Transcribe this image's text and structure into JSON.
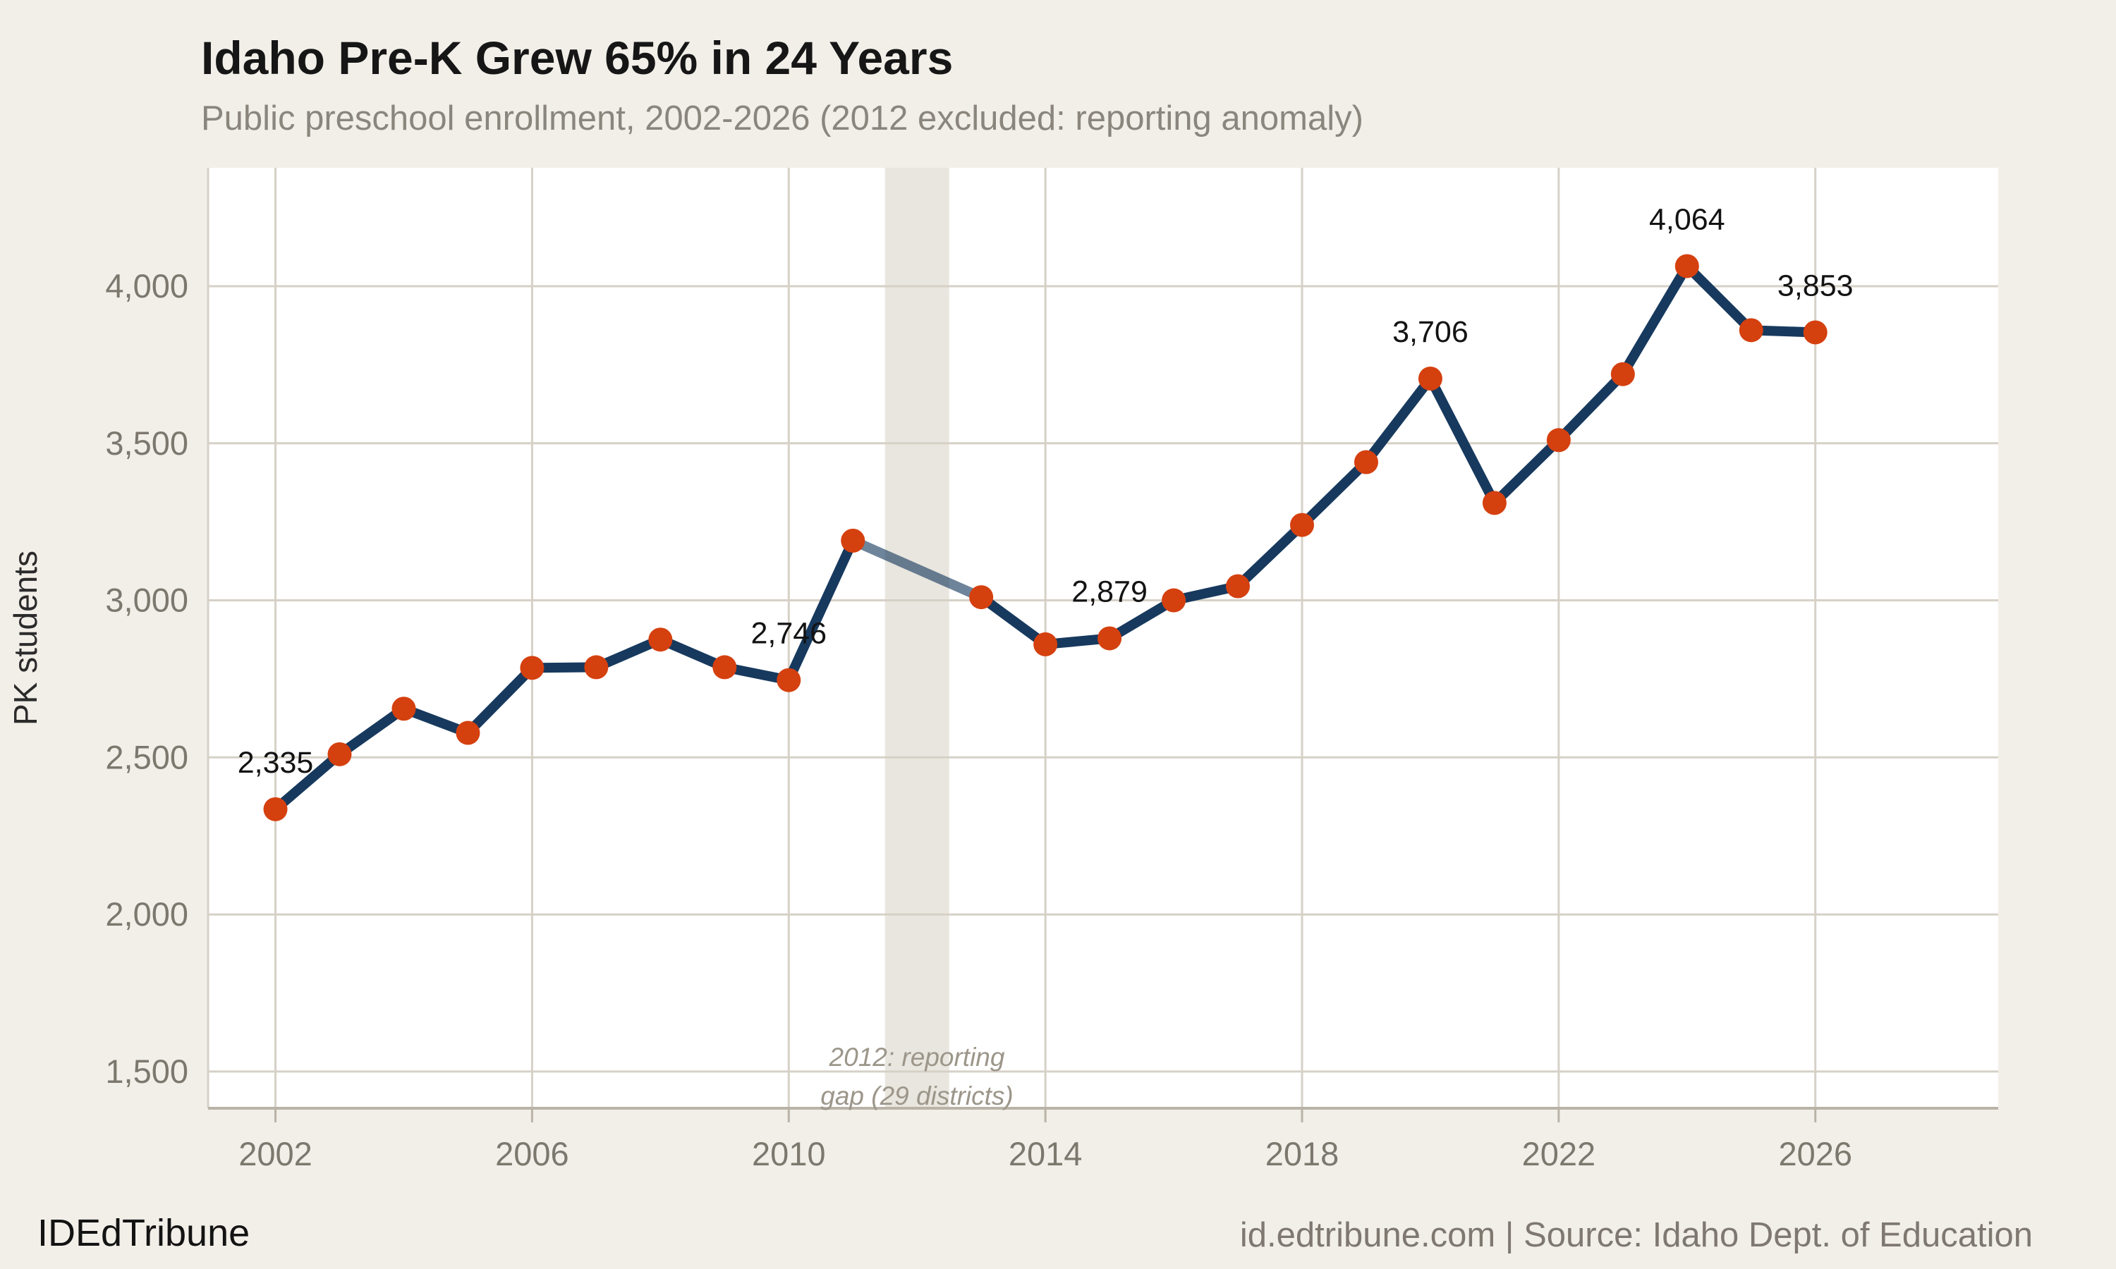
{
  "header": {
    "title": "Idaho Pre-K Grew 65% in 24 Years",
    "subtitle": "Public preschool enrollment, 2002-2026 (2012 excluded: reporting anomaly)"
  },
  "footer": {
    "brand": "IDEdTribune",
    "source": "id.edtribune.com | Source: Idaho Dept. of Education"
  },
  "chart_data": {
    "type": "line",
    "title": "Idaho Pre-K Grew 65% in 24 Years",
    "subtitle": "Public preschool enrollment, 2002-2026 (2012 excluded: reporting anomaly)",
    "xlabel": "",
    "ylabel": "PK students",
    "x": [
      2002,
      2003,
      2004,
      2005,
      2006,
      2007,
      2008,
      2009,
      2010,
      2011,
      2012,
      2013,
      2014,
      2015,
      2016,
      2017,
      2018,
      2019,
      2020,
      2021,
      2022,
      2023,
      2024,
      2025,
      2026
    ],
    "values": [
      2335,
      2510,
      2655,
      2578,
      2785,
      2787,
      2875,
      2787,
      2746,
      3190,
      null,
      3010,
      2860,
      2879,
      3000,
      3045,
      3240,
      3440,
      3706,
      3310,
      3510,
      3720,
      4064,
      3860,
      3853
    ],
    "gap_year": 2012,
    "point_labels": [
      {
        "year": 2002,
        "label": "2,335"
      },
      {
        "year": 2010,
        "label": "2,746"
      },
      {
        "year": 2015,
        "label": "2,879"
      },
      {
        "year": 2020,
        "label": "3,706"
      },
      {
        "year": 2024,
        "label": "4,064"
      },
      {
        "year": 2026,
        "label": "3,853"
      }
    ],
    "x_ticks": [
      {
        "value": 2002,
        "label": "2002"
      },
      {
        "value": 2006,
        "label": "2006"
      },
      {
        "value": 2010,
        "label": "2010"
      },
      {
        "value": 2014,
        "label": "2014"
      },
      {
        "value": 2018,
        "label": "2018"
      },
      {
        "value": 2022,
        "label": "2022"
      },
      {
        "value": 2026,
        "label": "2026"
      }
    ],
    "y_ticks": [
      {
        "value": 1500,
        "label": "1,500"
      },
      {
        "value": 2000,
        "label": "2,000"
      },
      {
        "value": 2500,
        "label": "2,500"
      },
      {
        "value": 3000,
        "label": "3,000"
      },
      {
        "value": 3500,
        "label": "3,500"
      },
      {
        "value": 4000,
        "label": "4,000"
      }
    ],
    "xlim": [
      2000.95,
      2028.85
    ],
    "ylim": [
      1383,
      4377
    ],
    "grid": true,
    "legend": false,
    "gap_band": {
      "x0": 2011.5,
      "x1": 2012.5,
      "label_lines": [
        "2012: reporting",
        "gap (29 districts)"
      ]
    },
    "colors": {
      "background": "#F2EFE9",
      "plot_background": "#FFFFFF",
      "grid": "#D6D1C7",
      "axis": "#B9B3A7",
      "line": "#17395E",
      "gap_segment": "#17395E",
      "marker": "#D5400F",
      "gap_band": "#E9E6DF"
    }
  }
}
